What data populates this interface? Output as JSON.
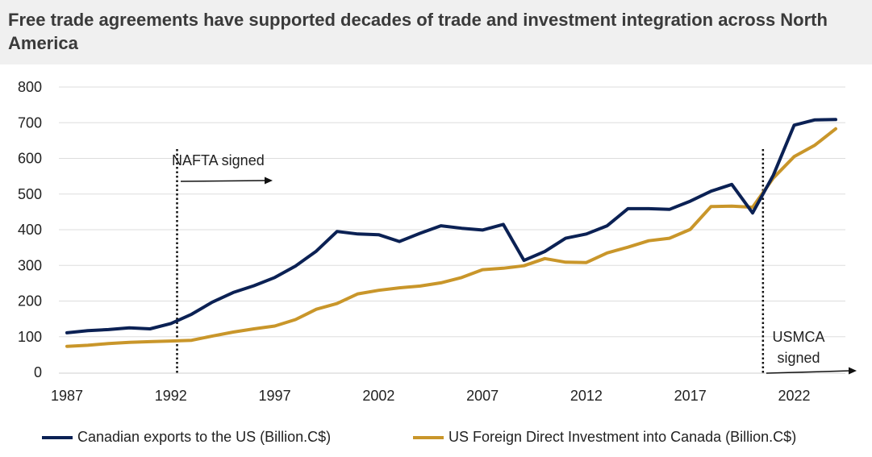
{
  "title": "Free trade agreements have supported decades of trade and investment integration across North America",
  "colors": {
    "exports": "#0b2154",
    "fdi": "#c9962a",
    "grid": "#dddddd",
    "title_bg": "#f0f0f0"
  },
  "chart_data": {
    "type": "line",
    "title": "Free trade agreements have supported decades of trade and investment integration across North America",
    "xlabel": "",
    "ylabel": "",
    "xlim": [
      1987,
      2024
    ],
    "ylim": [
      0,
      800
    ],
    "x_ticks": [
      1987,
      1992,
      1997,
      2002,
      2007,
      2012,
      2017,
      2022
    ],
    "y_ticks": [
      0,
      100,
      200,
      300,
      400,
      500,
      600,
      700,
      800
    ],
    "grid": "horizontal",
    "legend": "bottom",
    "x": [
      1987,
      1988,
      1989,
      1990,
      1991,
      1992,
      1993,
      1994,
      1995,
      1996,
      1997,
      1998,
      1999,
      2000,
      2001,
      2002,
      2003,
      2004,
      2005,
      2006,
      2007,
      2008,
      2009,
      2010,
      2011,
      2012,
      2013,
      2014,
      2015,
      2016,
      2017,
      2018,
      2019,
      2020,
      2021,
      2022,
      2023,
      2024
    ],
    "series": [
      {
        "name": "Canadian exports to the US (Billion.C$)",
        "color": "#0b2154",
        "values": [
          111,
          117,
          120,
          125,
          122,
          137,
          163,
          197,
          224,
          243,
          266,
          298,
          340,
          395,
          388,
          386,
          367,
          390,
          411,
          404,
          399,
          415,
          314,
          339,
          376,
          388,
          411,
          459,
          459,
          457,
          480,
          508,
          527,
          447,
          553,
          693,
          708,
          709
        ]
      },
      {
        "name": "US Foreign Direct Investment into Canada  (Billion.C$)",
        "color": "#c9962a",
        "values": [
          73,
          76,
          81,
          84,
          86,
          88,
          90,
          102,
          113,
          122,
          130,
          148,
          177,
          193,
          220,
          230,
          237,
          242,
          251,
          266,
          288,
          292,
          299,
          319,
          309,
          308,
          335,
          351,
          369,
          376,
          401,
          465,
          466,
          463,
          545,
          605,
          637,
          683
        ]
      }
    ],
    "annotations": [
      {
        "text": "NAFTA signed",
        "x": 1992.3,
        "type": "vline",
        "arrow": "right"
      },
      {
        "text": "USMCA",
        "text2": "signed",
        "x": 2020.5,
        "type": "vline",
        "arrow": "right"
      }
    ]
  }
}
